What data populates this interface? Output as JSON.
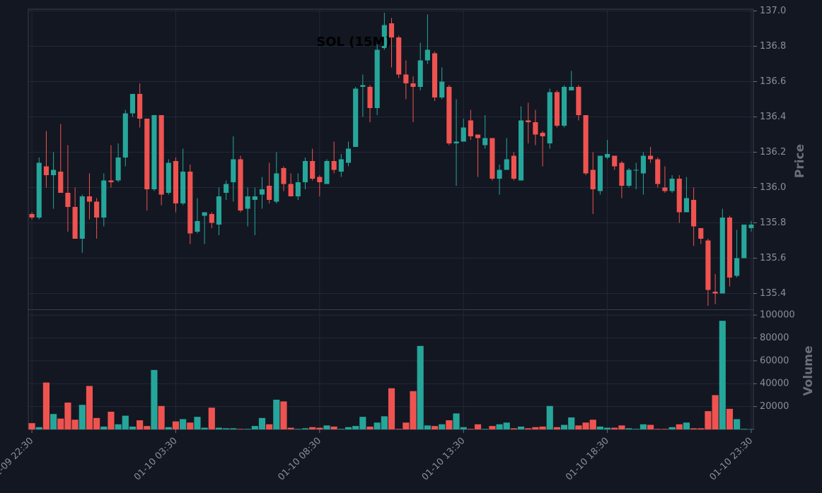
{
  "chart_data": {
    "type": "candlestick",
    "title": "SOL (15M)",
    "ylabel": "Price",
    "volume_label": "Volume",
    "up_color": "#26a69a",
    "down_color": "#ef5350",
    "grid": true,
    "xlim": [
      -0.5,
      100.3
    ],
    "xticks": [
      {
        "value": 0,
        "label": "01-09 22:30"
      },
      {
        "value": 20,
        "label": "01-10 03:30"
      },
      {
        "value": 40,
        "label": "01-10 08:30"
      },
      {
        "value": 60,
        "label": "01-10 13:30"
      },
      {
        "value": 80,
        "label": "01-10 18:30"
      },
      {
        "value": 100,
        "label": "01-10 23:30"
      }
    ],
    "ylim": [
      135.31,
      137.01
    ],
    "yticks": [
      135.4,
      135.6,
      135.8,
      {
        "value": 136,
        "label": "136.0"
      },
      136.2,
      136.4,
      136.6,
      136.8,
      {
        "value": 137,
        "label": "137.0"
      }
    ],
    "volume_ylim": [
      0,
      105000
    ],
    "volume_yticks": [
      20000,
      40000,
      60000,
      80000,
      100000
    ],
    "open": [
      135.85,
      135.83,
      136.12,
      136.07,
      136.09,
      135.97,
      135.89,
      135.71,
      135.95,
      135.92,
      135.83,
      136.04,
      136.04,
      136.17,
      136.42,
      136.53,
      136.39,
      135.99,
      136.41,
      135.97,
      136.15,
      135.91,
      136.09,
      135.75,
      135.84,
      135.85,
      135.79,
      135.97,
      136.03,
      136.16,
      135.88,
      135.93,
      135.96,
      136.01,
      135.92,
      136.11,
      136.02,
      135.95,
      136.03,
      136.15,
      136.06,
      136.02,
      136.15,
      136.09,
      136.14,
      136.23,
      136.57,
      136.57,
      136.45,
      136.79,
      136.93,
      136.85,
      136.64,
      136.59,
      136.57,
      136.72,
      136.76,
      136.51,
      136.57,
      136.25,
      136.26,
      136.38,
      136.3,
      136.24,
      136.28,
      136.05,
      136.1,
      136.18,
      136.04,
      136.38,
      136.37,
      136.31,
      136.25,
      136.54,
      136.35,
      136.55,
      136.57,
      136.41,
      136.1,
      135.98,
      136.17,
      136.18,
      136.14,
      136.01,
      136.1,
      136.08,
      136.18,
      136.16,
      136.0,
      135.98,
      136.05,
      135.86,
      135.93,
      135.77,
      135.7,
      135.41,
      135.4,
      135.83,
      135.5,
      135.6,
      135.77
    ],
    "high": [
      135.86,
      136.17,
      136.32,
      136.2,
      136.36,
      136.24,
      136.0,
      135.96,
      136.08,
      135.94,
      136.08,
      136.24,
      136.25,
      136.44,
      136.53,
      136.59,
      136.39,
      136.41,
      136.41,
      136.16,
      136.17,
      136.22,
      136.13,
      135.94,
      135.86,
      135.86,
      136.0,
      136.04,
      136.29,
      136.18,
      136.0,
      136.0,
      136.06,
      136.14,
      136.2,
      136.12,
      136.08,
      136.08,
      136.17,
      136.22,
      136.07,
      136.16,
      136.26,
      136.19,
      136.26,
      136.57,
      136.64,
      136.58,
      136.81,
      136.99,
      136.96,
      136.86,
      136.72,
      136.63,
      136.82,
      136.98,
      136.77,
      136.68,
      136.58,
      136.5,
      136.39,
      136.44,
      136.3,
      136.41,
      136.28,
      136.13,
      136.28,
      136.2,
      136.46,
      136.48,
      136.44,
      136.32,
      136.56,
      136.55,
      136.58,
      136.66,
      136.58,
      136.41,
      136.2,
      136.18,
      136.27,
      136.18,
      136.15,
      136.11,
      136.14,
      136.2,
      136.23,
      136.17,
      136.12,
      136.07,
      136.07,
      136.06,
      136.0,
      135.77,
      135.71,
      135.51,
      135.88,
      135.84,
      135.76,
      135.79,
      135.81
    ],
    "low": [
      135.82,
      135.82,
      136.0,
      135.88,
      135.97,
      135.75,
      135.71,
      135.63,
      135.82,
      135.71,
      135.78,
      136.0,
      136.03,
      136.12,
      136.4,
      136.34,
      135.87,
      135.98,
      135.9,
      135.96,
      135.86,
      135.9,
      135.68,
      135.74,
      135.68,
      135.77,
      135.73,
      135.93,
      135.92,
      135.86,
      135.78,
      135.73,
      135.88,
      135.91,
      135.91,
      135.98,
      135.95,
      135.93,
      135.99,
      136.04,
      135.95,
      136.02,
      136.08,
      136.06,
      136.12,
      136.23,
      136.4,
      136.37,
      136.41,
      136.78,
      136.68,
      136.62,
      136.5,
      136.37,
      136.55,
      136.7,
      136.49,
      136.5,
      136.24,
      136.01,
      136.26,
      136.27,
      136.06,
      136.22,
      136.04,
      135.96,
      136.1,
      136.04,
      136.04,
      136.25,
      136.24,
      136.12,
      136.22,
      136.34,
      136.34,
      136.55,
      136.38,
      136.07,
      135.85,
      135.96,
      136.16,
      136.1,
      135.94,
      136.0,
      135.99,
      135.96,
      136.14,
      136.0,
      135.97,
      135.97,
      135.8,
      135.86,
      135.67,
      135.68,
      135.33,
      135.34,
      135.4,
      135.44,
      135.49,
      135.6,
      135.75
    ],
    "close": [
      135.83,
      136.14,
      136.07,
      136.1,
      135.97,
      135.89,
      135.71,
      135.95,
      135.92,
      135.83,
      136.04,
      136.03,
      136.17,
      136.42,
      136.53,
      136.39,
      135.99,
      136.41,
      135.96,
      136.14,
      135.91,
      136.09,
      135.74,
      135.81,
      135.86,
      135.8,
      135.95,
      136.02,
      136.16,
      135.87,
      135.95,
      135.95,
      135.99,
      135.93,
      136.08,
      136.02,
      135.95,
      136.03,
      136.15,
      136.05,
      136.03,
      136.15,
      136.1,
      136.16,
      136.22,
      136.56,
      136.58,
      136.45,
      136.78,
      136.92,
      136.85,
      136.64,
      136.59,
      136.57,
      136.72,
      136.78,
      136.51,
      136.6,
      136.25,
      136.26,
      136.34,
      136.29,
      136.28,
      136.28,
      136.05,
      136.1,
      136.16,
      136.05,
      136.38,
      136.37,
      136.3,
      136.29,
      136.54,
      136.35,
      136.57,
      136.57,
      136.41,
      136.08,
      135.99,
      136.18,
      136.19,
      136.12,
      136.01,
      136.1,
      136.1,
      136.18,
      136.16,
      136.02,
      135.98,
      136.05,
      135.86,
      135.94,
      135.78,
      135.71,
      135.42,
      135.4,
      135.83,
      135.49,
      135.6,
      135.79,
      135.79
    ],
    "volume": [
      5500,
      2000,
      41000,
      13500,
      9500,
      23500,
      8500,
      21500,
      38000,
      10000,
      2500,
      15500,
      4500,
      12000,
      2500,
      8000,
      3000,
      52000,
      20500,
      2000,
      7000,
      9000,
      6000,
      11000,
      1500,
      19000,
      1500,
      1000,
      1000,
      500,
      500,
      3000,
      10000,
      4500,
      26000,
      24500,
      1500,
      500,
      1000,
      2000,
      1500,
      3500,
      2500,
      500,
      2000,
      3000,
      11000,
      2500,
      6000,
      11500,
      36000,
      500,
      6000,
      33500,
      73000,
      3500,
      3000,
      4500,
      8000,
      14000,
      2000,
      500,
      4500,
      500,
      3000,
      4500,
      6000,
      1000,
      2500,
      1000,
      2000,
      2500,
      20500,
      2000,
      4000,
      10500,
      3500,
      6000,
      8500,
      2500,
      1500,
      1500,
      3500,
      1000,
      500,
      4500,
      4000,
      500,
      500,
      2000,
      4500,
      6000,
      1000,
      1000,
      16000,
      30000,
      95000,
      18000,
      9000,
      500,
      300
    ]
  }
}
